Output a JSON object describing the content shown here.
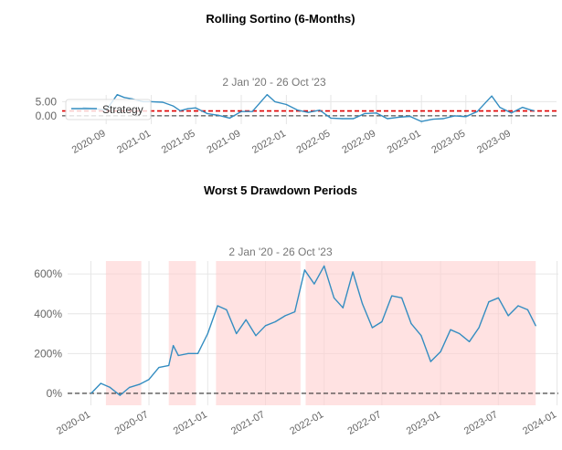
{
  "colors": {
    "line": "#348dc1",
    "threshold": "#e00000",
    "zero": "#000000",
    "shade": "#ffcfcf",
    "grid": "#e6e6e6"
  },
  "chart_data": [
    {
      "type": "line",
      "title": "Rolling Sortino (6-Months)",
      "subtitle": "2 Jan '20 - 26 Oct '23",
      "legend": {
        "entries": [
          "Strategy"
        ],
        "placement": "top-left"
      },
      "grid": true,
      "xlim": [
        "2020-05-05",
        "2024-01-01"
      ],
      "ylim": [
        -2.95,
        7.4
      ],
      "x_ticks": [
        "2020-09",
        "2021-01",
        "2021-05",
        "2021-09",
        "2022-01",
        "2022-05",
        "2022-09",
        "2023-01",
        "2023-05",
        "2023-09"
      ],
      "y_ticks": [
        {
          "value": 0,
          "label": "0.00"
        },
        {
          "value": 5,
          "label": "5.00"
        }
      ],
      "reference_lines": [
        {
          "value": 1.73,
          "style": "dashed",
          "color": "red"
        },
        {
          "value": 0,
          "style": "dashed",
          "color": "black"
        }
      ],
      "series": [
        {
          "name": "Strategy",
          "points": [
            [
              "2020-07-01",
              3
            ],
            [
              "2020-08-01",
              2.5
            ],
            [
              "2020-09-01",
              2
            ],
            [
              "2020-10-01",
              7.5
            ],
            [
              "2020-10-20",
              6.5
            ],
            [
              "2020-11-10",
              6
            ],
            [
              "2020-12-10",
              5
            ],
            [
              "2021-01-01",
              5
            ],
            [
              "2021-02-01",
              4.8
            ],
            [
              "2021-03-01",
              3.5
            ],
            [
              "2021-03-20",
              1.8
            ],
            [
              "2021-04-10",
              2.5
            ],
            [
              "2021-05-01",
              2.8
            ],
            [
              "2021-06-01",
              0.8
            ],
            [
              "2021-07-01",
              0.2
            ],
            [
              "2021-08-01",
              -0.8
            ],
            [
              "2021-09-01",
              1.5
            ],
            [
              "2021-10-01",
              1.5
            ],
            [
              "2021-11-10",
              7.5
            ],
            [
              "2021-12-01",
              5
            ],
            [
              "2022-01-01",
              4
            ],
            [
              "2022-02-01",
              2
            ],
            [
              "2022-03-01",
              1.2
            ],
            [
              "2022-04-01",
              2
            ],
            [
              "2022-05-01",
              -0.8
            ],
            [
              "2022-06-01",
              -1
            ],
            [
              "2022-07-01",
              -1
            ],
            [
              "2022-08-01",
              0.8
            ],
            [
              "2022-09-01",
              1
            ],
            [
              "2022-10-01",
              -1
            ],
            [
              "2022-11-01",
              -0.5
            ],
            [
              "2022-12-01",
              -0.2
            ],
            [
              "2023-01-01",
              -2
            ],
            [
              "2023-02-01",
              -1.2
            ],
            [
              "2023-03-01",
              -1
            ],
            [
              "2023-04-01",
              0
            ],
            [
              "2023-05-01",
              -0.3
            ],
            [
              "2023-06-01",
              1.5
            ],
            [
              "2023-07-10",
              7
            ],
            [
              "2023-08-01",
              3
            ],
            [
              "2023-09-01",
              1
            ],
            [
              "2023-10-01",
              3
            ],
            [
              "2023-10-20",
              2.2
            ],
            [
              "2023-11-01",
              1.8
            ]
          ]
        }
      ]
    },
    {
      "type": "line",
      "title": "Worst 5 Drawdown Periods",
      "subtitle": "2 Jan '20 - 26 Oct '23",
      "grid": true,
      "xlim": [
        "2019-10-20",
        "2024-01-05"
      ],
      "ylim": [
        -60,
        665
      ],
      "x_ticks": [
        "2020-01",
        "2020-07",
        "2021-01",
        "2021-07",
        "2022-01",
        "2022-07",
        "2023-01",
        "2023-07",
        "2024-01"
      ],
      "y_ticks": [
        {
          "value": 0,
          "label": "0%"
        },
        {
          "value": 200,
          "label": "200%"
        },
        {
          "value": 400,
          "label": "400%"
        },
        {
          "value": 600,
          "label": "600%"
        }
      ],
      "reference_lines": [
        {
          "value": 0,
          "style": "dashed",
          "color": "black"
        }
      ],
      "drawdown_periods": [
        [
          "2020-02-17",
          "2020-06-07"
        ],
        [
          "2020-09-01",
          "2020-11-25"
        ],
        [
          "2021-01-27",
          "2021-10-19"
        ],
        [
          "2021-11-04",
          "2023-10-26"
        ]
      ],
      "series": [
        {
          "points": [
            [
              "2020-01-02",
              0
            ],
            [
              "2020-02-01",
              50
            ],
            [
              "2020-03-01",
              30
            ],
            [
              "2020-04-01",
              -10
            ],
            [
              "2020-05-01",
              30
            ],
            [
              "2020-06-01",
              45
            ],
            [
              "2020-07-01",
              70
            ],
            [
              "2020-08-01",
              130
            ],
            [
              "2020-09-01",
              140
            ],
            [
              "2020-09-15",
              240
            ],
            [
              "2020-10-01",
              190
            ],
            [
              "2020-11-01",
              200
            ],
            [
              "2020-12-01",
              200
            ],
            [
              "2021-01-01",
              300
            ],
            [
              "2021-02-01",
              440
            ],
            [
              "2021-03-01",
              420
            ],
            [
              "2021-04-01",
              300
            ],
            [
              "2021-05-01",
              370
            ],
            [
              "2021-06-01",
              290
            ],
            [
              "2021-07-01",
              340
            ],
            [
              "2021-08-01",
              360
            ],
            [
              "2021-09-01",
              390
            ],
            [
              "2021-10-01",
              410
            ],
            [
              "2021-11-01",
              620
            ],
            [
              "2021-12-01",
              550
            ],
            [
              "2022-01-01",
              640
            ],
            [
              "2022-02-01",
              480
            ],
            [
              "2022-03-01",
              430
            ],
            [
              "2022-04-01",
              610
            ],
            [
              "2022-05-01",
              450
            ],
            [
              "2022-06-01",
              330
            ],
            [
              "2022-07-01",
              360
            ],
            [
              "2022-08-01",
              490
            ],
            [
              "2022-09-01",
              480
            ],
            [
              "2022-10-01",
              350
            ],
            [
              "2022-11-01",
              290
            ],
            [
              "2022-12-01",
              160
            ],
            [
              "2023-01-01",
              210
            ],
            [
              "2023-02-01",
              320
            ],
            [
              "2023-03-01",
              300
            ],
            [
              "2023-04-01",
              260
            ],
            [
              "2023-05-01",
              330
            ],
            [
              "2023-06-01",
              460
            ],
            [
              "2023-07-01",
              480
            ],
            [
              "2023-08-01",
              390
            ],
            [
              "2023-09-01",
              440
            ],
            [
              "2023-10-01",
              420
            ],
            [
              "2023-10-26",
              340
            ]
          ]
        }
      ]
    }
  ]
}
